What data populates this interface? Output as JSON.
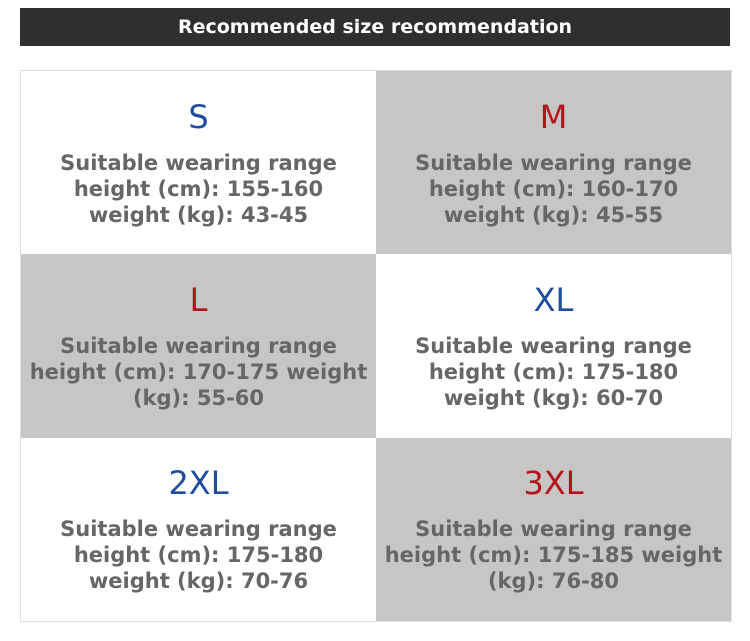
{
  "header": {
    "title": "Recommended size recommendation"
  },
  "cells": [
    {
      "size": "S",
      "lines": [
        "Suitable wearing range",
        "height (cm): 155-160",
        "weight (kg): 43-45"
      ]
    },
    {
      "size": "M",
      "lines": [
        "Suitable wearing range",
        "height (cm): 160-170",
        "weight (kg): 45-55"
      ]
    },
    {
      "size": "L",
      "lines": [
        "Suitable wearing range",
        "height (cm): 170-175 weight",
        "(kg): 55-60"
      ]
    },
    {
      "size": "XL",
      "lines": [
        "Suitable wearing range",
        "height (cm): 175-180",
        "weight (kg): 60-70"
      ]
    },
    {
      "size": "2XL",
      "lines": [
        "Suitable wearing range",
        "height (cm): 175-180",
        "weight (kg): 70-76"
      ]
    },
    {
      "size": "3XL",
      "lines": [
        "Suitable wearing range",
        "height (cm): 175-185 weight",
        "(kg): 76-80"
      ]
    }
  ]
}
